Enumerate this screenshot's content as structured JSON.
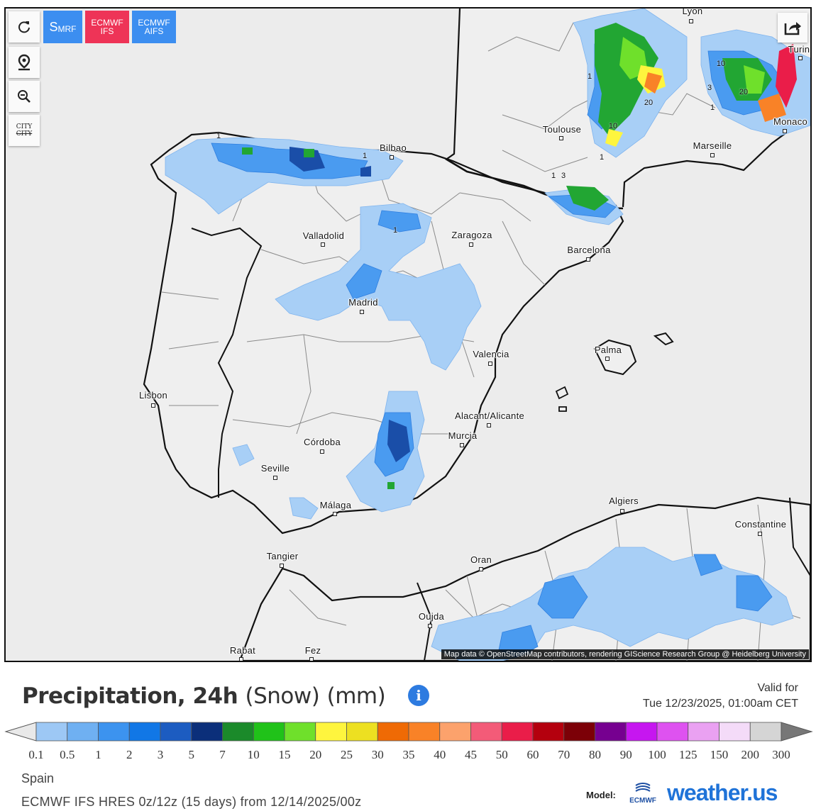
{
  "toolbar": {
    "refresh_icon": "refresh-icon",
    "location_icon": "location-pin-icon",
    "zoom_icon": "zoom-out-icon",
    "city_toggle_top": "CITY",
    "city_toggle_bottom": "CITY",
    "share_icon": "share-icon"
  },
  "models": {
    "smrf_big": "S",
    "smrf_small": "MRF",
    "ifs_line1": "ECMWF",
    "ifs_line2": "IFS",
    "aifs_line1": "ECMWF",
    "aifs_line2": "AIFS",
    "active": "ECMWF IFS"
  },
  "map": {
    "attribution": "Map data © OpenStreetMap contributors, rendering GIScience Research Group @ Heidelberg University",
    "cities": [
      {
        "name": "Lyon"
      },
      {
        "name": "Turin"
      },
      {
        "name": "Toulouse"
      },
      {
        "name": "Marseille"
      },
      {
        "name": "Monaco"
      },
      {
        "name": "Bilbao"
      },
      {
        "name": "Valladolid"
      },
      {
        "name": "Zaragoza"
      },
      {
        "name": "Barcelona"
      },
      {
        "name": "Madrid"
      },
      {
        "name": "Valencia"
      },
      {
        "name": "Palma"
      },
      {
        "name": "Lisbon"
      },
      {
        "name": "Alacant/Alicante"
      },
      {
        "name": "Murcia"
      },
      {
        "name": "Córdoba"
      },
      {
        "name": "Seville"
      },
      {
        "name": "Málaga"
      },
      {
        "name": "Algiers"
      },
      {
        "name": "Constantine"
      },
      {
        "name": "Tangier"
      },
      {
        "name": "Oran"
      },
      {
        "name": "Oujda"
      },
      {
        "name": "Rabat"
      },
      {
        "name": "Fez"
      }
    ],
    "contour_labels": [
      "1",
      "10",
      "20",
      "3",
      "10",
      "20",
      "1",
      "1",
      "3",
      "1",
      "1",
      "1",
      "1"
    ]
  },
  "legend": {
    "title_main": "Precipitation, 24h",
    "title_paren": "(Snow)",
    "title_unit": "(mm)",
    "info_icon": "info-icon",
    "valid_label": "Valid for",
    "valid_time": "Tue 12/23/2025, 01:00am CET",
    "ticks": [
      "0.1",
      "0.5",
      "1",
      "2",
      "3",
      "5",
      "7",
      "10",
      "15",
      "20",
      "25",
      "30",
      "35",
      "40",
      "45",
      "50",
      "60",
      "70",
      "80",
      "90",
      "100",
      "125",
      "150",
      "200",
      "300"
    ],
    "colors": [
      "#9dc8f5",
      "#6fb0f2",
      "#3c93ef",
      "#1177e6",
      "#1c5cc1",
      "#0b2f7a",
      "#1b8a2a",
      "#20c219",
      "#6fe02b",
      "#fef53e",
      "#ede021",
      "#ef6a05",
      "#f98227",
      "#fca26c",
      "#f35b78",
      "#ea1d49",
      "#b4000e",
      "#7c0007",
      "#760090",
      "#c616f0",
      "#de52f0",
      "#eaa1f2",
      "#f4dbf8",
      "#d5d5d5"
    ]
  },
  "footer": {
    "region": "Spain",
    "model_run": "ECMWF IFS HRES 0z/12z (15 days) from 12/14/2025/00z",
    "model_label": "Model:",
    "ecmwf_logo_text": "ECMWF",
    "brand_name": "weather.us"
  }
}
